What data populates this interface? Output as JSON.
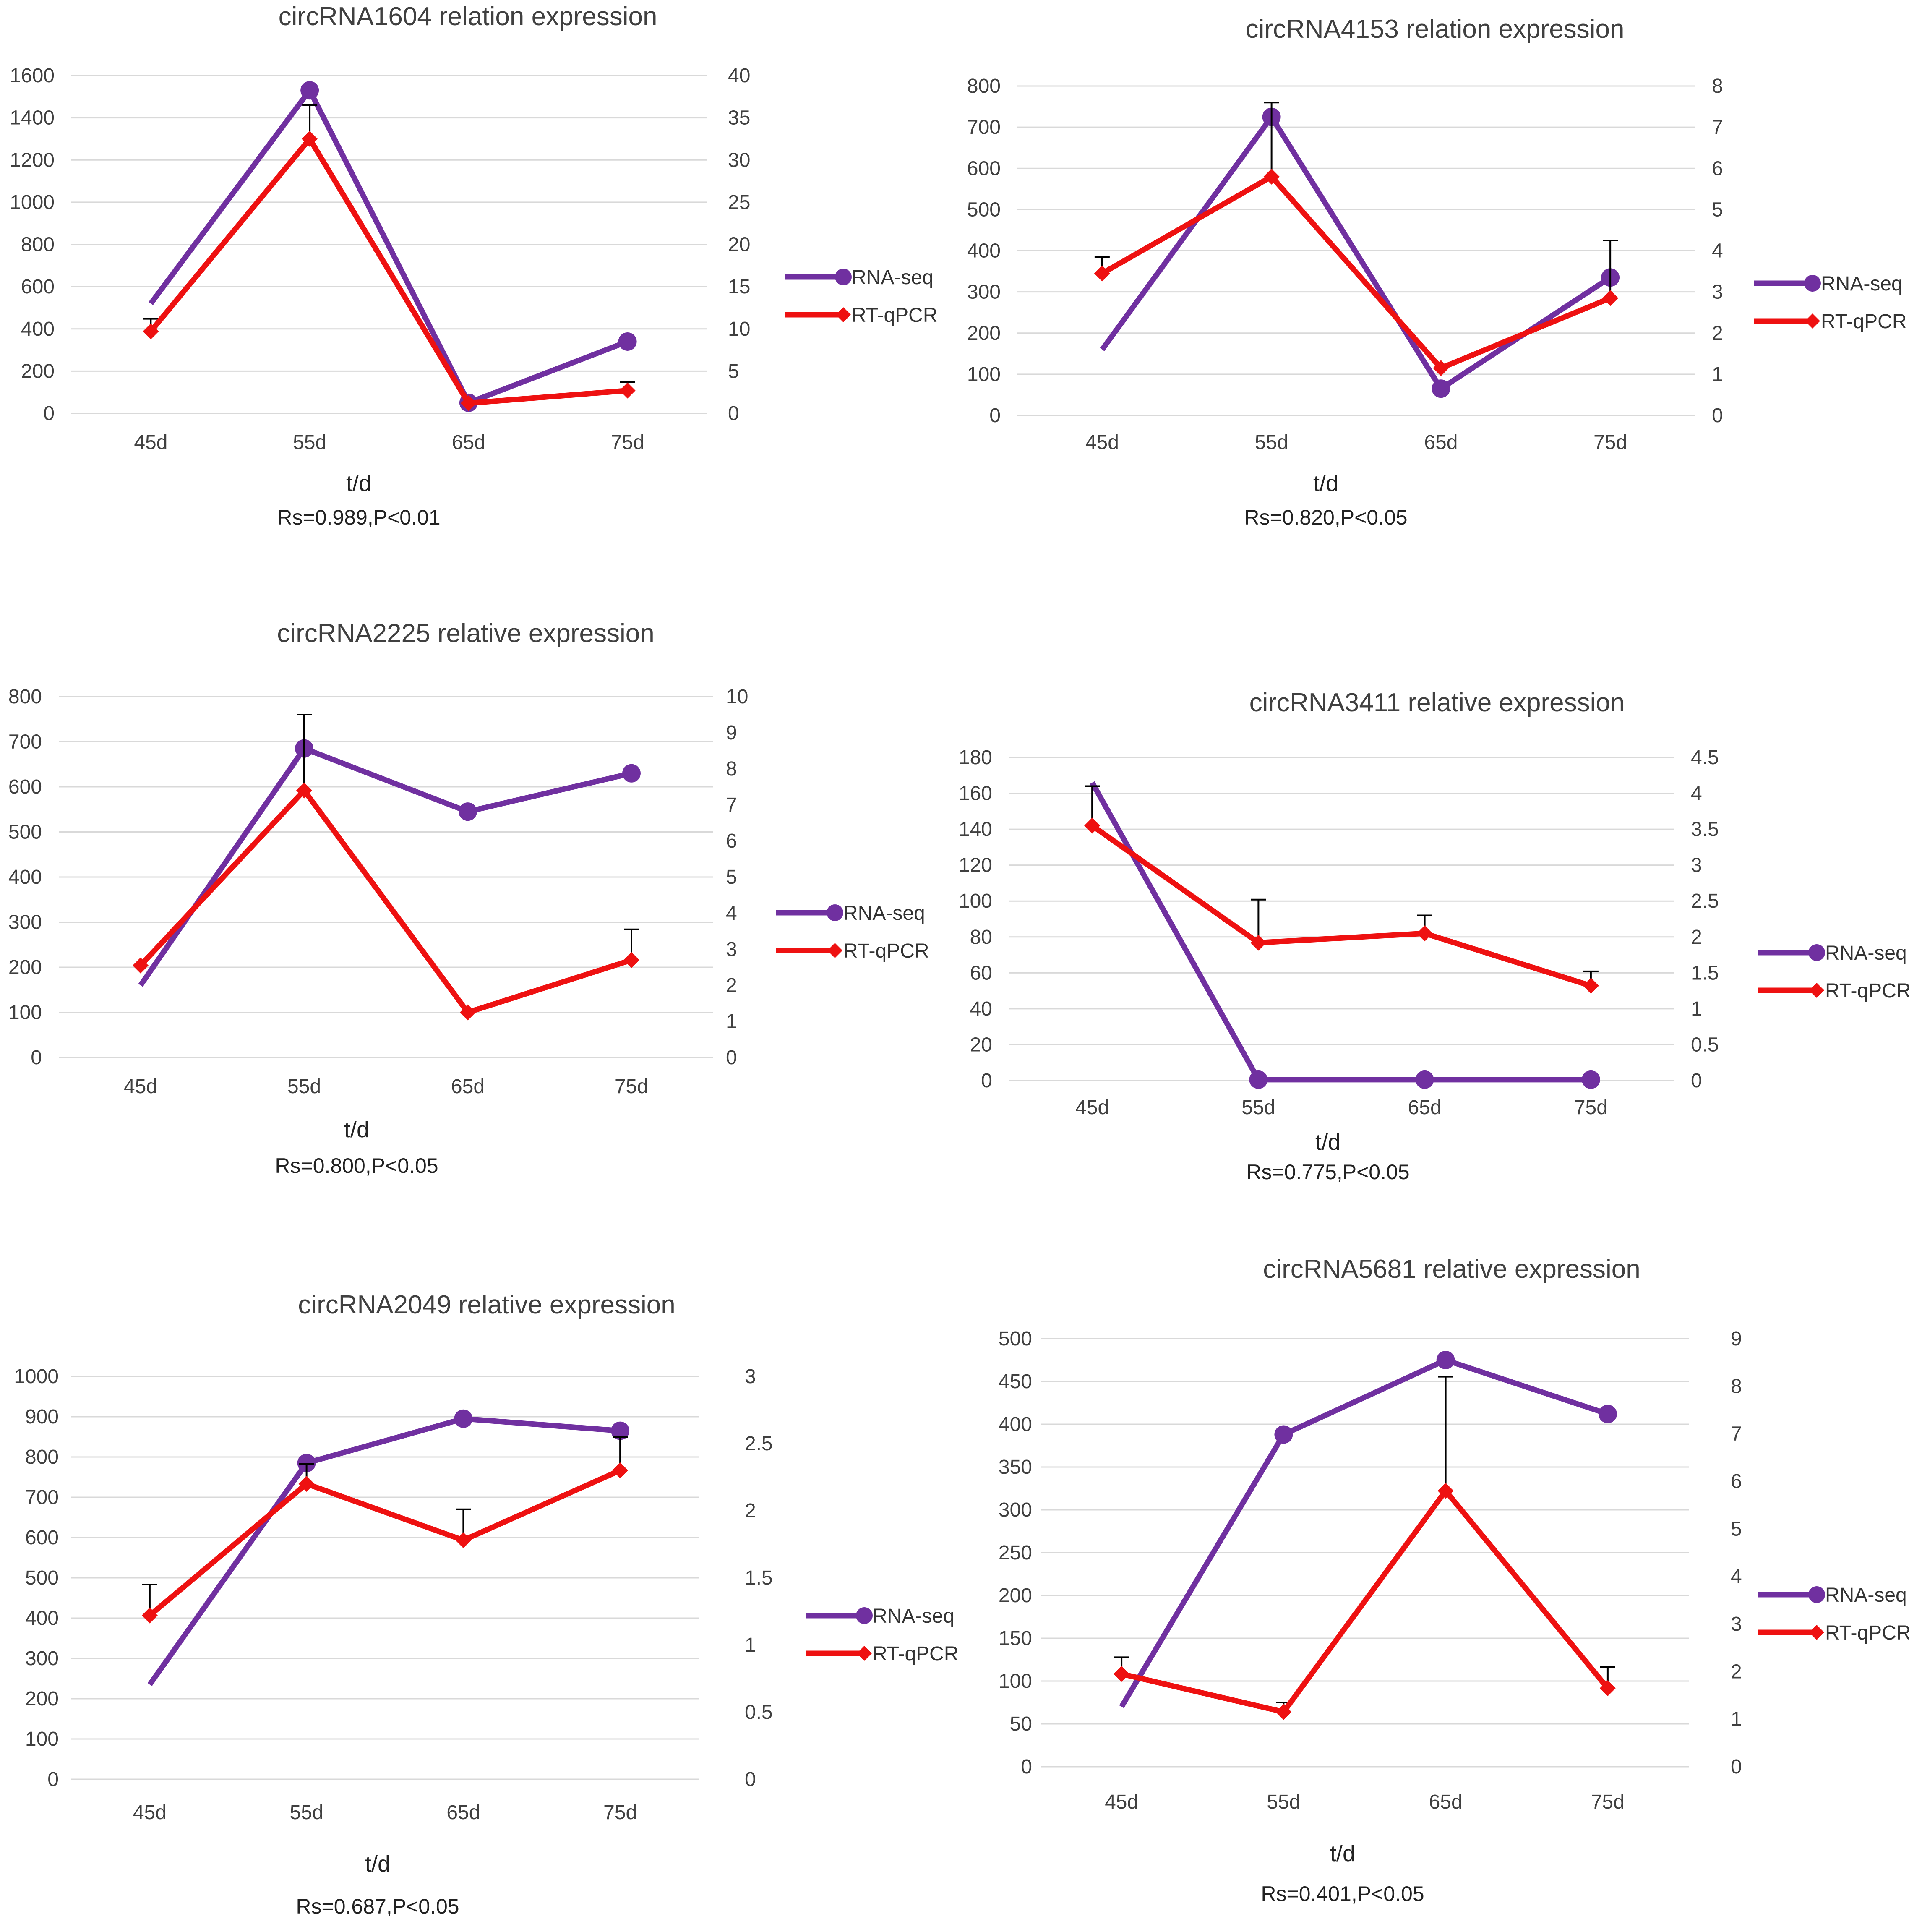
{
  "colors": {
    "rna_seq": "#7030A0",
    "rt_qpcr": "#EE1111",
    "grid": "#d9d9d9",
    "error_bar": "#000000"
  },
  "chart_data": [
    {
      "type": "line",
      "title": "circRNA1604 relation expression",
      "categories": [
        "45d",
        "55d",
        "65d",
        "75d"
      ],
      "xlabel": "t/d",
      "note": "Rs=0.989,P<0.01",
      "y_left": {
        "min": 0,
        "max": 1600,
        "ticks": [
          0,
          200,
          400,
          600,
          800,
          1000,
          1200,
          1400,
          1600
        ],
        "labels": [
          "0",
          "200",
          "400",
          "600",
          "800",
          "1000",
          "1200",
          "1400",
          "1600"
        ]
      },
      "y_right": {
        "min": 0,
        "max": 40,
        "ticks": [
          0,
          5,
          10,
          15,
          20,
          25,
          30,
          35,
          40
        ],
        "labels": [
          "0",
          "5",
          "10",
          "15",
          "20",
          "25",
          "30",
          "35",
          "40"
        ]
      },
      "series": [
        {
          "name": "RNA-seq",
          "axis": "left",
          "values": [
            520,
            1530,
            50,
            340
          ],
          "markers": [
            false,
            true,
            true,
            true
          ]
        },
        {
          "name": "RT-qPCR",
          "axis": "right",
          "values": [
            9.7,
            32.5,
            1.2,
            2.7
          ],
          "errors": [
            1.5,
            4,
            0,
            1
          ],
          "markers": [
            true,
            true,
            true,
            true
          ]
        }
      ]
    },
    {
      "type": "line",
      "title": "circRNA4153 relation expression",
      "categories": [
        "45d",
        "55d",
        "65d",
        "75d"
      ],
      "xlabel": "t/d",
      "note": "Rs=0.820,P<0.05",
      "y_left": {
        "min": 0,
        "max": 800,
        "ticks": [
          0,
          100,
          200,
          300,
          400,
          500,
          600,
          700,
          800
        ],
        "labels": [
          "0",
          "100",
          "200",
          "300",
          "400",
          "500",
          "600",
          "700",
          "800"
        ]
      },
      "y_right": {
        "min": 0,
        "max": 8,
        "ticks": [
          0,
          1,
          2,
          3,
          4,
          5,
          6,
          7,
          8
        ],
        "labels": [
          "0",
          "1",
          "2",
          "3",
          "4",
          "5",
          "6",
          "7",
          "8"
        ]
      },
      "series": [
        {
          "name": "RNA-seq",
          "axis": "left",
          "values": [
            160,
            725,
            65,
            335
          ],
          "markers": [
            false,
            true,
            true,
            true
          ]
        },
        {
          "name": "RT-qPCR",
          "axis": "right",
          "values": [
            3.45,
            5.8,
            1.15,
            2.85
          ],
          "errors": [
            0.4,
            1.8,
            0,
            1.4
          ],
          "markers": [
            true,
            true,
            true,
            true
          ]
        }
      ]
    },
    {
      "type": "line",
      "title": "circRNA2225 relative expression",
      "categories": [
        "45d",
        "55d",
        "65d",
        "75d"
      ],
      "xlabel": "t/d",
      "note": "Rs=0.800,P<0.05",
      "y_left": {
        "min": 0,
        "max": 800,
        "ticks": [
          0,
          100,
          200,
          300,
          400,
          500,
          600,
          700,
          800
        ],
        "labels": [
          "0",
          "100",
          "200",
          "300",
          "400",
          "500",
          "600",
          "700",
          "800"
        ]
      },
      "y_right": {
        "min": 0,
        "max": 10,
        "ticks": [
          0,
          1,
          2,
          3,
          4,
          5,
          6,
          7,
          8,
          9,
          10
        ],
        "labels": [
          "0",
          "1",
          "2",
          "3",
          "4",
          "5",
          "6",
          "7",
          "8",
          "9",
          "10"
        ]
      },
      "series": [
        {
          "name": "RNA-seq",
          "axis": "left",
          "values": [
            160,
            685,
            545,
            630
          ],
          "markers": [
            false,
            true,
            true,
            true
          ]
        },
        {
          "name": "RT-qPCR",
          "axis": "right",
          "values": [
            2.55,
            7.4,
            1.25,
            2.7
          ],
          "errors": [
            0,
            2.1,
            0,
            0.85
          ],
          "markers": [
            true,
            true,
            true,
            true
          ]
        }
      ]
    },
    {
      "type": "line",
      "title": "circRNA3411 relative expression",
      "categories": [
        "45d",
        "55d",
        "65d",
        "75d"
      ],
      "xlabel": "t/d",
      "note": "Rs=0.775,P<0.05",
      "y_left": {
        "min": 0,
        "max": 180,
        "ticks": [
          0,
          20,
          40,
          60,
          80,
          100,
          120,
          140,
          160,
          180
        ],
        "labels": [
          "0",
          "20",
          "40",
          "60",
          "80",
          "100",
          "120",
          "140",
          "160",
          "180"
        ]
      },
      "y_right": {
        "min": 0,
        "max": 4.5,
        "ticks": [
          0,
          0.5,
          1,
          1.5,
          2,
          2.5,
          3,
          3.5,
          4,
          4.5
        ],
        "labels": [
          "0",
          "0.5",
          "1",
          "1.5",
          "2",
          "2.5",
          "3",
          "3.5",
          "4",
          "4.5"
        ]
      },
      "series": [
        {
          "name": "RNA-seq",
          "axis": "left",
          "values": [
            166,
            0.5,
            0.5,
            0.5
          ],
          "markers": [
            false,
            true,
            true,
            true
          ]
        },
        {
          "name": "RT-qPCR",
          "axis": "right",
          "values": [
            3.55,
            1.92,
            2.05,
            1.32
          ],
          "errors": [
            0.55,
            0.6,
            0.25,
            0.2
          ],
          "markers": [
            true,
            true,
            true,
            true
          ]
        }
      ]
    },
    {
      "type": "line",
      "title": "circRNA2049 relative expression",
      "categories": [
        "45d",
        "55d",
        "65d",
        "75d"
      ],
      "xlabel": "t/d",
      "note": "Rs=0.687,P<0.05",
      "y_left": {
        "min": 0,
        "max": 1000,
        "ticks": [
          0,
          100,
          200,
          300,
          400,
          500,
          600,
          700,
          800,
          900,
          1000
        ],
        "labels": [
          "0",
          "100",
          "200",
          "300",
          "400",
          "500",
          "600",
          "700",
          "800",
          "900",
          "1000"
        ]
      },
      "y_right": {
        "min": 0,
        "max": 3,
        "ticks": [
          0,
          0.5,
          1,
          1.5,
          2,
          2.5,
          3
        ],
        "labels": [
          "0",
          "0.5",
          "1",
          "1.5",
          "2",
          "2.5",
          "3"
        ]
      },
      "series": [
        {
          "name": "RNA-seq",
          "axis": "left",
          "values": [
            235,
            785,
            895,
            865
          ],
          "markers": [
            false,
            true,
            true,
            true
          ]
        },
        {
          "name": "RT-qPCR",
          "axis": "right",
          "values": [
            1.22,
            2.2,
            1.78,
            2.3
          ],
          "errors": [
            0.23,
            0.15,
            0.23,
            0.25
          ],
          "markers": [
            true,
            true,
            true,
            true
          ]
        }
      ]
    },
    {
      "type": "line",
      "title": "circRNA5681 relative expression",
      "categories": [
        "45d",
        "55d",
        "65d",
        "75d"
      ],
      "xlabel": "t/d",
      "note": "Rs=0.401,P<0.05",
      "y_left": {
        "min": 0,
        "max": 500,
        "ticks": [
          0,
          50,
          100,
          150,
          200,
          250,
          300,
          350,
          400,
          450,
          500
        ],
        "labels": [
          "0",
          "50",
          "100",
          "150",
          "200",
          "250",
          "300",
          "350",
          "400",
          "450",
          "500"
        ]
      },
      "y_right": {
        "min": 0,
        "max": 9,
        "ticks": [
          0,
          1,
          2,
          3,
          4,
          5,
          6,
          7,
          8,
          9
        ],
        "labels": [
          "0",
          "1",
          "2",
          "3",
          "4",
          "5",
          "6",
          "7",
          "8",
          "9"
        ]
      },
      "series": [
        {
          "name": "RNA-seq",
          "axis": "left",
          "values": [
            70,
            388,
            475,
            412
          ],
          "markers": [
            false,
            true,
            true,
            true
          ]
        },
        {
          "name": "RT-qPCR",
          "axis": "right",
          "values": [
            1.95,
            1.15,
            5.8,
            1.65
          ],
          "errors": [
            0.35,
            0.2,
            2.4,
            0.45
          ],
          "markers": [
            true,
            true,
            true,
            true
          ]
        }
      ]
    }
  ]
}
